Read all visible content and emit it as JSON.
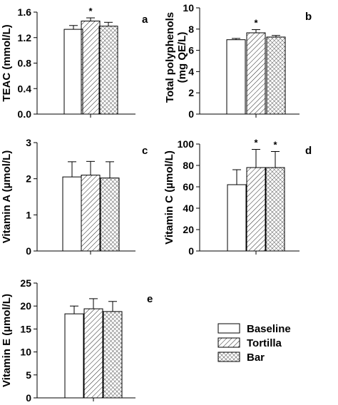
{
  "legend": {
    "items": [
      {
        "label": "Baseline",
        "pattern": "none"
      },
      {
        "label": "Tortilla",
        "pattern": "hatch-diagonal"
      },
      {
        "label": "Bar",
        "pattern": "hatch-cross"
      }
    ]
  },
  "chart_data": [
    {
      "type": "bar",
      "panel": "a",
      "categories": [
        "Baseline",
        "Tortilla",
        "Bar"
      ],
      "values": [
        1.33,
        1.46,
        1.38
      ],
      "errors": [
        0.06,
        0.05,
        0.06
      ],
      "significance": [
        "",
        "*",
        ""
      ],
      "title": "",
      "xlabel": "",
      "ylabel": "TEAC (mmol/L)",
      "ylim": [
        0,
        1.6
      ],
      "yticks": [
        "0.0",
        "0.4",
        "0.8",
        "1.2",
        "1.6"
      ]
    },
    {
      "type": "bar",
      "panel": "b",
      "categories": [
        "Baseline",
        "Tortilla",
        "Bar"
      ],
      "values": [
        7.0,
        7.65,
        7.25
      ],
      "errors": [
        0.12,
        0.3,
        0.15
      ],
      "significance": [
        "",
        "*",
        ""
      ],
      "title": "",
      "xlabel": "",
      "ylabel": "Total polyphenols (mg QE/L)",
      "ylim": [
        0,
        10
      ],
      "yticks": [
        "0",
        "2",
        "4",
        "6",
        "8",
        "10"
      ]
    },
    {
      "type": "bar",
      "panel": "c",
      "categories": [
        "Baseline",
        "Tortilla",
        "Bar"
      ],
      "values": [
        2.05,
        2.1,
        2.02
      ],
      "errors": [
        0.42,
        0.38,
        0.45
      ],
      "significance": [
        "",
        "",
        ""
      ],
      "title": "",
      "xlabel": "",
      "ylabel": "Vitamin A (µmol/L)",
      "ylim": [
        0,
        3
      ],
      "yticks": [
        "0",
        "1",
        "2",
        "3"
      ]
    },
    {
      "type": "bar",
      "panel": "d",
      "categories": [
        "Baseline",
        "Tortilla",
        "Bar"
      ],
      "values": [
        62,
        78,
        78
      ],
      "errors": [
        14,
        17,
        15
      ],
      "significance": [
        "",
        "*",
        "*"
      ],
      "title": "",
      "xlabel": "",
      "ylabel": "Vitamin C (µmol/L)",
      "ylim": [
        0,
        100
      ],
      "yticks": [
        "0",
        "20",
        "40",
        "60",
        "80",
        "100"
      ]
    },
    {
      "type": "bar",
      "panel": "e",
      "categories": [
        "Baseline",
        "Tortilla",
        "Bar"
      ],
      "values": [
        18.3,
        19.4,
        18.8
      ],
      "errors": [
        1.7,
        2.2,
        2.2
      ],
      "significance": [
        "",
        "",
        ""
      ],
      "title": "",
      "xlabel": "",
      "ylabel": "Vitamin E (µmol/L)",
      "ylim": [
        0,
        25
      ],
      "yticks": [
        "0",
        "5",
        "10",
        "15",
        "20",
        "25"
      ]
    }
  ]
}
